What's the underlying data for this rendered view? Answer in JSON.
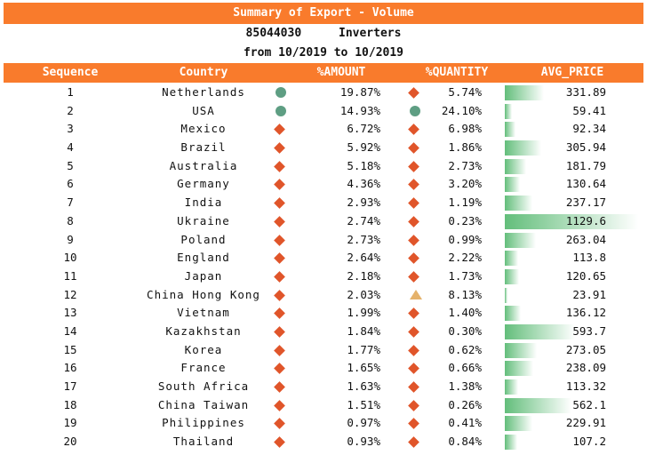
{
  "title": "Summary of Export - Volume",
  "hs_code": "85044030",
  "product": "Inverters",
  "period": "from 10/2019 to 10/2019",
  "columns": [
    "Sequence",
    "Country",
    "%AMOUNT",
    "%QUANTITY",
    "AVG_PRICE"
  ],
  "colors": {
    "header_bg": "#f97b2c",
    "circle": "#5e9e83",
    "diamond": "#e0552a",
    "triangle": "#e5b26b",
    "bar": "#63be7b"
  },
  "rows": [
    {
      "seq": "1",
      "country": "Netherlands",
      "amount": "19.87%",
      "amount_icon": "circle",
      "quantity": "5.74%",
      "quantity_icon": "diamond",
      "avg_price": "331.89",
      "price_value": 331.89
    },
    {
      "seq": "2",
      "country": "USA",
      "amount": "14.93%",
      "amount_icon": "circle",
      "quantity": "24.10%",
      "quantity_icon": "circle",
      "avg_price": "59.41",
      "price_value": 59.41
    },
    {
      "seq": "3",
      "country": "Mexico",
      "amount": "6.72%",
      "amount_icon": "diamond",
      "quantity": "6.98%",
      "quantity_icon": "diamond",
      "avg_price": "92.34",
      "price_value": 92.34
    },
    {
      "seq": "4",
      "country": "Brazil",
      "amount": "5.92%",
      "amount_icon": "diamond",
      "quantity": "1.86%",
      "quantity_icon": "diamond",
      "avg_price": "305.94",
      "price_value": 305.94
    },
    {
      "seq": "5",
      "country": "Australia",
      "amount": "5.18%",
      "amount_icon": "diamond",
      "quantity": "2.73%",
      "quantity_icon": "diamond",
      "avg_price": "181.79",
      "price_value": 181.79
    },
    {
      "seq": "6",
      "country": "Germany",
      "amount": "4.36%",
      "amount_icon": "diamond",
      "quantity": "3.20%",
      "quantity_icon": "diamond",
      "avg_price": "130.64",
      "price_value": 130.64
    },
    {
      "seq": "7",
      "country": "India",
      "amount": "2.93%",
      "amount_icon": "diamond",
      "quantity": "1.19%",
      "quantity_icon": "diamond",
      "avg_price": "237.17",
      "price_value": 237.17
    },
    {
      "seq": "8",
      "country": "Ukraine",
      "amount": "2.74%",
      "amount_icon": "diamond",
      "quantity": "0.23%",
      "quantity_icon": "diamond",
      "avg_price": "1129.6",
      "price_value": 1129.6
    },
    {
      "seq": "9",
      "country": "Poland",
      "amount": "2.73%",
      "amount_icon": "diamond",
      "quantity": "0.99%",
      "quantity_icon": "diamond",
      "avg_price": "263.04",
      "price_value": 263.04
    },
    {
      "seq": "10",
      "country": "England",
      "amount": "2.64%",
      "amount_icon": "diamond",
      "quantity": "2.22%",
      "quantity_icon": "diamond",
      "avg_price": "113.8",
      "price_value": 113.8
    },
    {
      "seq": "11",
      "country": "Japan",
      "amount": "2.18%",
      "amount_icon": "diamond",
      "quantity": "1.73%",
      "quantity_icon": "diamond",
      "avg_price": "120.65",
      "price_value": 120.65
    },
    {
      "seq": "12",
      "country": "China Hong Kong",
      "amount": "2.03%",
      "amount_icon": "diamond",
      "quantity": "8.13%",
      "quantity_icon": "triangle",
      "avg_price": "23.91",
      "price_value": 23.91
    },
    {
      "seq": "13",
      "country": "Vietnam",
      "amount": "1.99%",
      "amount_icon": "diamond",
      "quantity": "1.40%",
      "quantity_icon": "diamond",
      "avg_price": "136.12",
      "price_value": 136.12
    },
    {
      "seq": "14",
      "country": "Kazakhstan",
      "amount": "1.84%",
      "amount_icon": "diamond",
      "quantity": "0.30%",
      "quantity_icon": "diamond",
      "avg_price": "593.7",
      "price_value": 593.7
    },
    {
      "seq": "15",
      "country": "Korea",
      "amount": "1.77%",
      "amount_icon": "diamond",
      "quantity": "0.62%",
      "quantity_icon": "diamond",
      "avg_price": "273.05",
      "price_value": 273.05
    },
    {
      "seq": "16",
      "country": "France",
      "amount": "1.65%",
      "amount_icon": "diamond",
      "quantity": "0.66%",
      "quantity_icon": "diamond",
      "avg_price": "238.09",
      "price_value": 238.09
    },
    {
      "seq": "17",
      "country": "South Africa",
      "amount": "1.63%",
      "amount_icon": "diamond",
      "quantity": "1.38%",
      "quantity_icon": "diamond",
      "avg_price": "113.32",
      "price_value": 113.32
    },
    {
      "seq": "18",
      "country": "China Taiwan",
      "amount": "1.51%",
      "amount_icon": "diamond",
      "quantity": "0.26%",
      "quantity_icon": "diamond",
      "avg_price": "562.1",
      "price_value": 562.1
    },
    {
      "seq": "19",
      "country": "Philippines",
      "amount": "0.97%",
      "amount_icon": "diamond",
      "quantity": "0.41%",
      "quantity_icon": "diamond",
      "avg_price": "229.91",
      "price_value": 229.91
    },
    {
      "seq": "20",
      "country": "Thailand",
      "amount": "0.93%",
      "amount_icon": "diamond",
      "quantity": "0.84%",
      "quantity_icon": "diamond",
      "avg_price": "107.2",
      "price_value": 107.2
    }
  ]
}
